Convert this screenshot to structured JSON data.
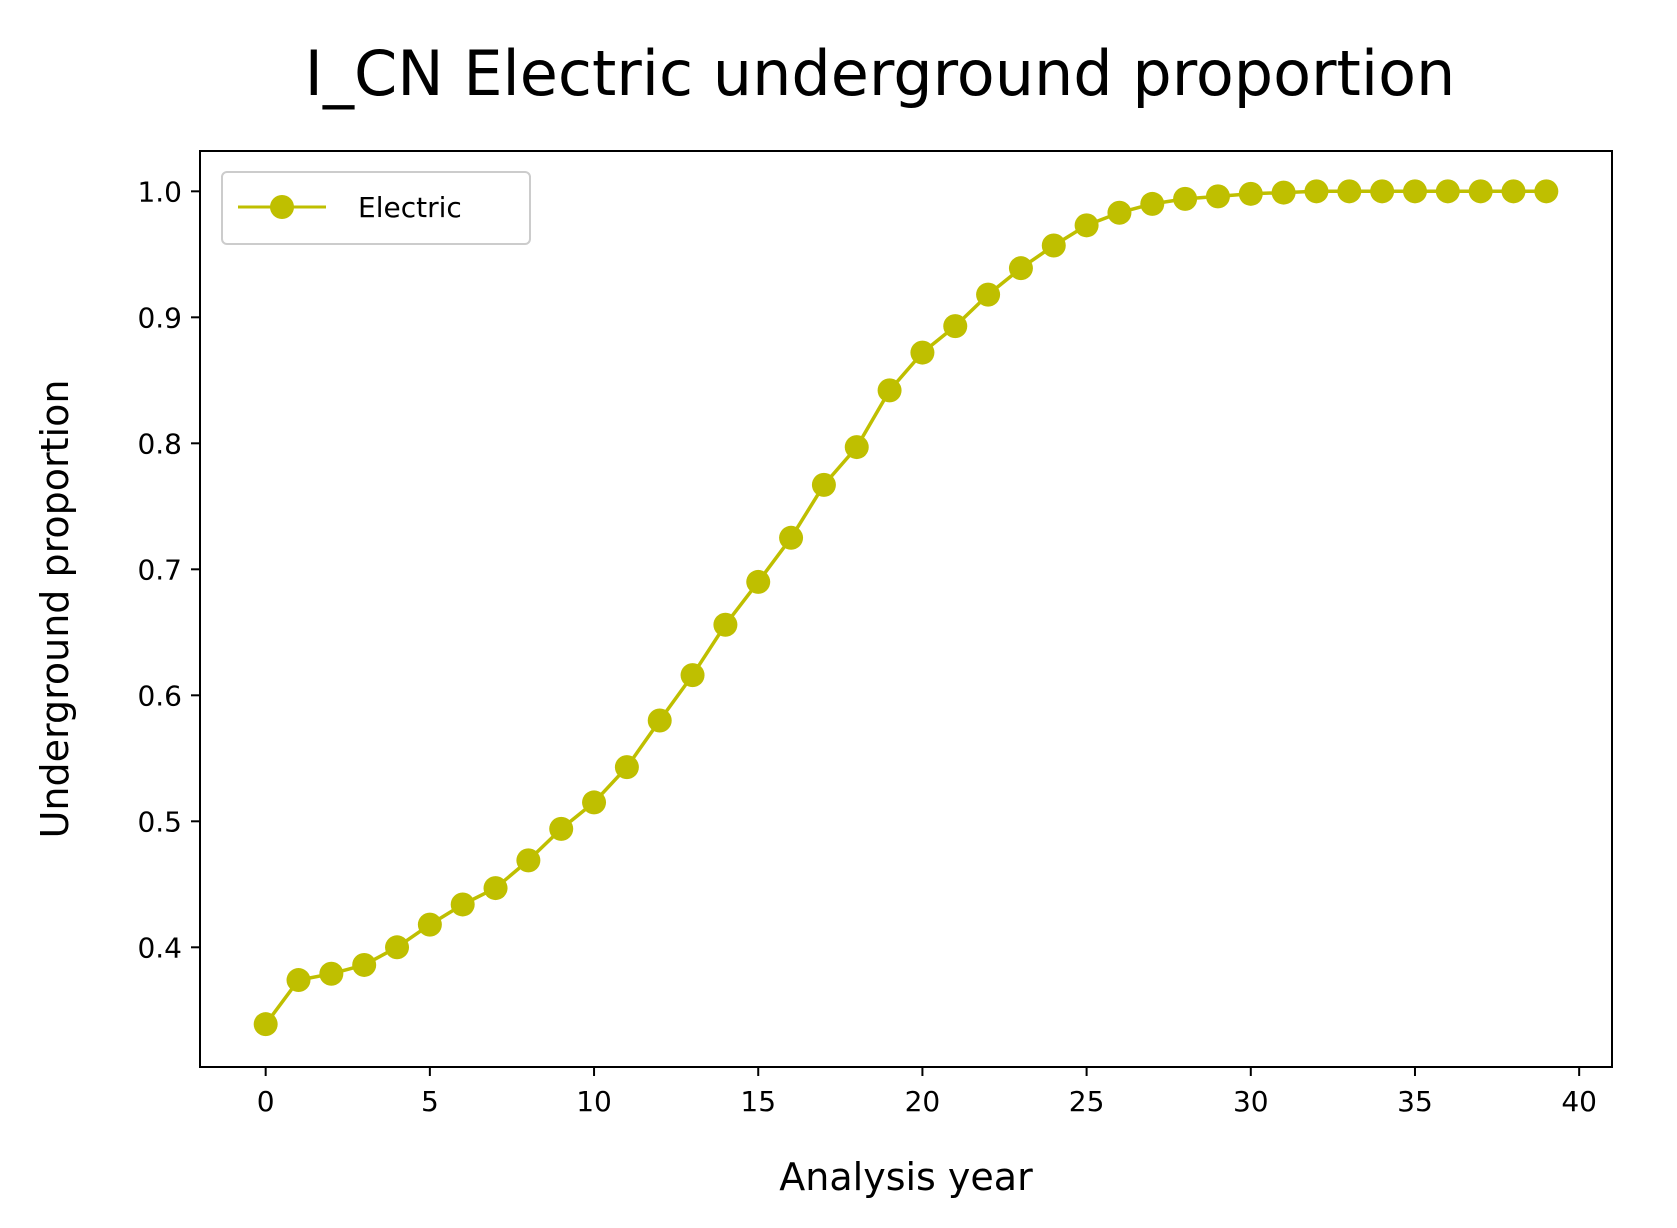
{
  "chart_data": {
    "type": "line",
    "title": "I_CN Electric underground proportion",
    "xlabel": "Analysis year",
    "ylabel": "Underground proportion",
    "xlim": [
      -2,
      41
    ],
    "ylim": [
      0.305,
      1.032
    ],
    "x_ticks": [
      0,
      5,
      10,
      15,
      20,
      25,
      30,
      35,
      40
    ],
    "y_ticks": [
      0.4,
      0.5,
      0.6,
      0.7,
      0.8,
      0.9,
      1.0
    ],
    "y_tick_labels": [
      "0.4",
      "0.5",
      "0.6",
      "0.7",
      "0.8",
      "0.9",
      "1.0"
    ],
    "grid": false,
    "legend_position": "upper-left",
    "series": [
      {
        "name": "Electric",
        "color": "#bfbf00",
        "marker": "circle",
        "x": [
          0,
          1,
          2,
          3,
          4,
          5,
          6,
          7,
          8,
          9,
          10,
          11,
          12,
          13,
          14,
          15,
          16,
          17,
          18,
          19,
          20,
          21,
          22,
          23,
          24,
          25,
          26,
          27,
          28,
          29,
          30,
          31,
          32,
          33,
          34,
          35,
          36,
          37,
          38,
          39
        ],
        "y": [
          0.339,
          0.374,
          0.379,
          0.386,
          0.4,
          0.418,
          0.434,
          0.447,
          0.469,
          0.494,
          0.515,
          0.543,
          0.58,
          0.616,
          0.656,
          0.69,
          0.725,
          0.767,
          0.797,
          0.842,
          0.872,
          0.893,
          0.918,
          0.939,
          0.957,
          0.973,
          0.983,
          0.99,
          0.994,
          0.996,
          0.998,
          0.999,
          1.0,
          1.0,
          1.0,
          1.0,
          1.0,
          1.0,
          1.0,
          1.0
        ]
      }
    ]
  }
}
